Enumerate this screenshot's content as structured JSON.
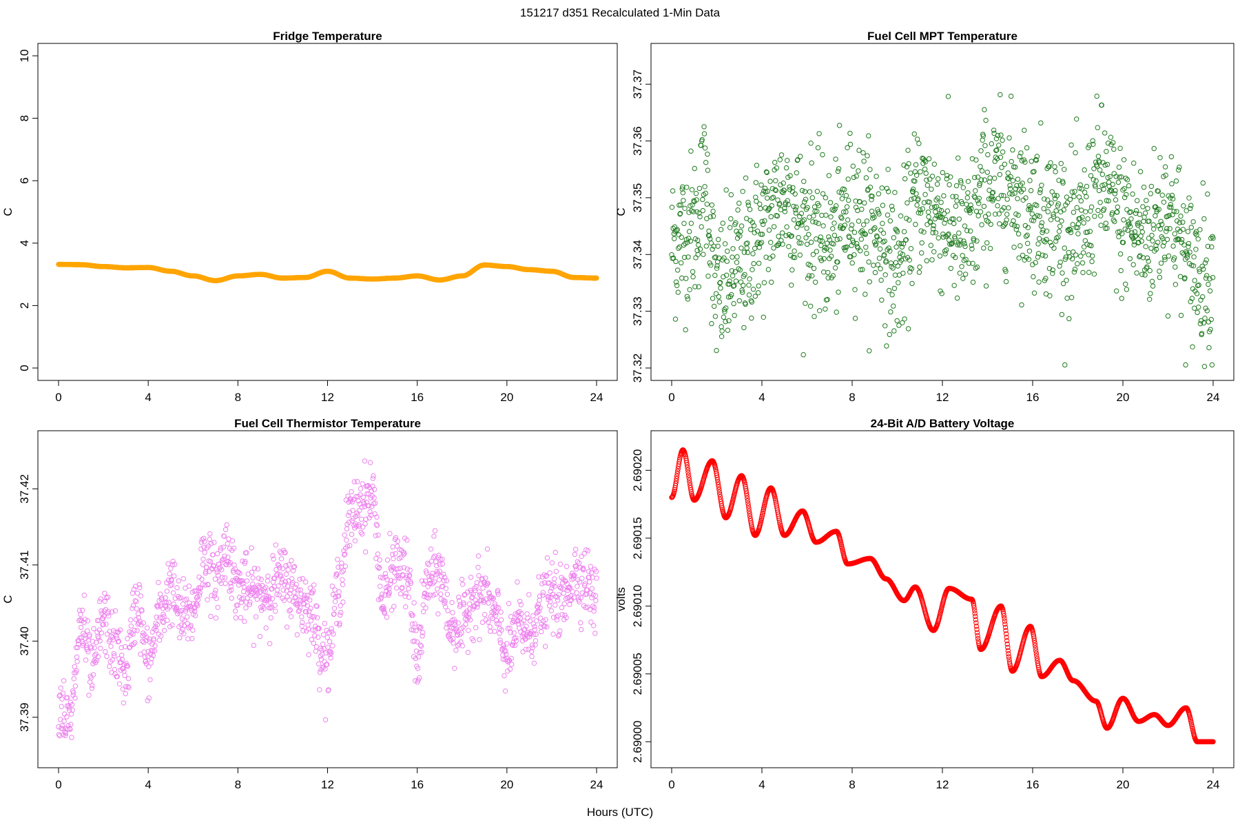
{
  "figure": {
    "title": "151217   d351   Recalculated 1-Min Data",
    "xlabel": "Hours (UTC)"
  },
  "chart_data": [
    {
      "type": "scatter",
      "title": "Fridge Temperature",
      "ylabel": "C",
      "xlim": [
        0,
        24
      ],
      "ylim": [
        0,
        10
      ],
      "xticks": [
        "0",
        "4",
        "8",
        "12",
        "16",
        "20",
        "24"
      ],
      "yticks": [
        "0",
        "2",
        "4",
        "6",
        "8",
        "10"
      ],
      "marker": "open-circle",
      "color": "#FFA500",
      "x": [
        0,
        1,
        2,
        3,
        4,
        5,
        6,
        7,
        8,
        9,
        10,
        11,
        12,
        13,
        14,
        15,
        16,
        17,
        18,
        19,
        20,
        21,
        22,
        23,
        24
      ],
      "y": [
        3.32,
        3.31,
        3.25,
        3.21,
        3.22,
        3.1,
        2.95,
        2.8,
        2.95,
        3.0,
        2.88,
        2.9,
        3.1,
        2.88,
        2.85,
        2.88,
        2.95,
        2.82,
        2.95,
        3.3,
        3.25,
        3.15,
        3.1,
        2.9,
        2.88
      ]
    },
    {
      "type": "scatter",
      "title": "Fuel Cell MPT Temperature",
      "ylabel": "C",
      "xlim": [
        0,
        24
      ],
      "ylim": [
        37.32,
        37.375
      ],
      "xticks": [
        "0",
        "4",
        "8",
        "12",
        "16",
        "20",
        "24"
      ],
      "yticks": [
        "37.32",
        "37.33",
        "37.34",
        "37.35",
        "37.36",
        "37.37"
      ],
      "marker": "open-circle",
      "color": "#1E7B1E",
      "x": [
        0,
        1,
        1.5,
        2,
        3,
        4,
        5,
        6,
        7,
        8,
        9,
        10,
        11,
        12,
        13,
        14,
        15,
        16,
        17,
        18,
        19,
        20,
        21,
        22,
        23,
        24
      ],
      "y": [
        37.342,
        37.345,
        37.352,
        37.333,
        37.338,
        37.344,
        37.35,
        37.345,
        37.342,
        37.348,
        37.345,
        37.338,
        37.35,
        37.347,
        37.342,
        37.352,
        37.352,
        37.348,
        37.346,
        37.343,
        37.353,
        37.346,
        37.343,
        37.348,
        37.338,
        37.336
      ]
    },
    {
      "type": "scatter",
      "title": "Fuel Cell Thermistor Temperature",
      "ylabel": "C",
      "xlim": [
        0,
        24
      ],
      "ylim": [
        37.385,
        37.426
      ],
      "xticks": [
        "0",
        "4",
        "8",
        "12",
        "16",
        "20",
        "24"
      ],
      "yticks": [
        "37.39",
        "37.40",
        "37.41",
        "37.42"
      ],
      "marker": "open-circle",
      "color": "#EE82EE",
      "x": [
        0,
        0.5,
        1,
        1.5,
        2,
        2.5,
        3,
        3.5,
        4,
        4.5,
        5,
        5.5,
        6,
        6.5,
        7,
        7.5,
        8,
        9,
        10,
        11,
        12,
        12.5,
        13,
        13.5,
        14,
        14.5,
        15,
        15.5,
        16,
        16.5,
        17,
        17.5,
        18,
        18.5,
        19,
        19.5,
        20,
        20.5,
        21,
        21.5,
        22,
        22.5,
        23,
        23.5,
        24
      ],
      "y": [
        37.392,
        37.389,
        37.402,
        37.396,
        37.403,
        37.399,
        37.396,
        37.405,
        37.397,
        37.403,
        37.407,
        37.403,
        37.404,
        37.411,
        37.408,
        37.412,
        37.407,
        37.406,
        37.408,
        37.405,
        37.398,
        37.407,
        37.416,
        37.418,
        37.419,
        37.405,
        37.41,
        37.409,
        37.398,
        37.408,
        37.409,
        37.402,
        37.402,
        37.406,
        37.406,
        37.403,
        37.398,
        37.402,
        37.401,
        37.404,
        37.406,
        37.405,
        37.409,
        37.408,
        37.405
      ]
    },
    {
      "type": "scatter",
      "title": "24-Bit A/D Battery Voltage",
      "ylabel": "volts",
      "xlim": [
        0,
        24
      ],
      "ylim": [
        2.68999,
        2.69022
      ],
      "xticks": [
        "0",
        "4",
        "8",
        "12",
        "16",
        "20",
        "24"
      ],
      "yticks": [
        "2.69000",
        "2.69005",
        "2.69010",
        "2.69015",
        "2.69020"
      ],
      "marker": "open-circle",
      "color": "#FF0000",
      "x": [
        0,
        0.5,
        1,
        1.8,
        2.4,
        3.1,
        3.7,
        4.4,
        5.0,
        5.8,
        6.4,
        7.3,
        7.8,
        8.8,
        9.5,
        10.3,
        10.8,
        11.6,
        12.3,
        13.3,
        13.7,
        14.6,
        15.1,
        15.9,
        16.4,
        17.2,
        17.8,
        18.8,
        19.3,
        20.0,
        20.7,
        21.4,
        22.0,
        22.8,
        23.3,
        24.0
      ],
      "y": [
        2.69018,
        2.690215,
        2.690178,
        2.690207,
        2.690165,
        2.690196,
        2.690152,
        2.690187,
        2.690152,
        2.69017,
        2.690147,
        2.690155,
        2.690131,
        2.690135,
        2.69012,
        2.690104,
        2.690114,
        2.690082,
        2.690113,
        2.690105,
        2.690068,
        2.6901,
        2.690052,
        2.690085,
        2.690048,
        2.69006,
        2.690045,
        2.69003,
        2.69001,
        2.690032,
        2.690015,
        2.69002,
        2.690012,
        2.690025,
        2.69,
        2.69
      ]
    }
  ]
}
